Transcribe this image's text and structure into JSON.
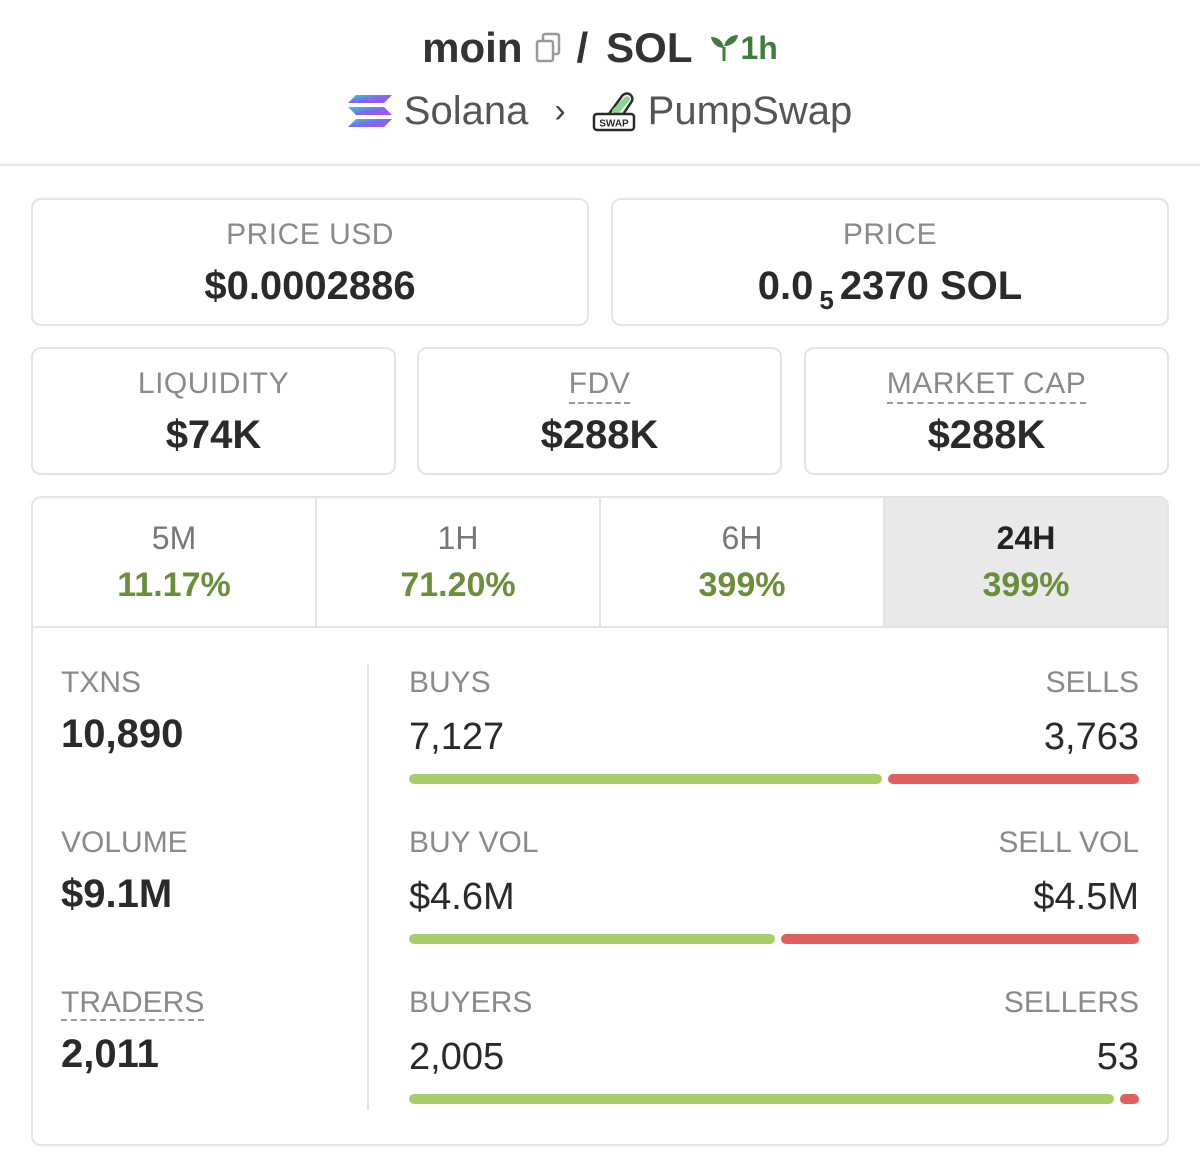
{
  "header": {
    "base_token": "moin",
    "separator": "/",
    "quote_token": "SOL",
    "pair_age": "1h",
    "chain": "Solana",
    "dex": "PumpSwap",
    "dex_badge": "SWAP"
  },
  "price_cards": {
    "price_usd": {
      "label": "PRICE USD",
      "value": "$0.0002886"
    },
    "price_native": {
      "label": "PRICE",
      "value_prefix": "0.0",
      "value_zero_count": "5",
      "value_suffix": "2370 SOL"
    }
  },
  "metric_cards": [
    {
      "label": "LIQUIDITY",
      "value": "$74K"
    },
    {
      "label": "FDV",
      "value": "$288K"
    },
    {
      "label": "MARKET CAP",
      "value": "$288K"
    }
  ],
  "timeframe_tabs": [
    {
      "label": "5M",
      "change": "11.17%"
    },
    {
      "label": "1H",
      "change": "71.20%"
    },
    {
      "label": "6H",
      "change": "399%"
    },
    {
      "label": "24H",
      "change": "399%",
      "active": true
    }
  ],
  "stats": {
    "txns": {
      "label": "TXNS",
      "value": "10,890"
    },
    "volume": {
      "label": "VOLUME",
      "value": "$9.1M"
    },
    "traders": {
      "label": "TRADERS",
      "value": "2,011"
    }
  },
  "splits": [
    {
      "left_label": "BUYS",
      "left_value": "7,127",
      "right_label": "SELLS",
      "right_value": "3,763",
      "buy_fraction": 0.654
    },
    {
      "left_label": "BUY VOL",
      "left_value": "$4.6M",
      "right_label": "SELL VOL",
      "right_value": "$4.5M",
      "buy_fraction": 0.506
    },
    {
      "left_label": "BUYERS",
      "left_value": "2,005",
      "right_label": "SELLERS",
      "right_value": "53",
      "buy_fraction": 0.974
    }
  ],
  "colors": {
    "positive_change": "#6a8f3a",
    "buy_bar": "#a8cc66",
    "sell_bar": "#e06060",
    "pair_age": "#3e7d3e"
  }
}
